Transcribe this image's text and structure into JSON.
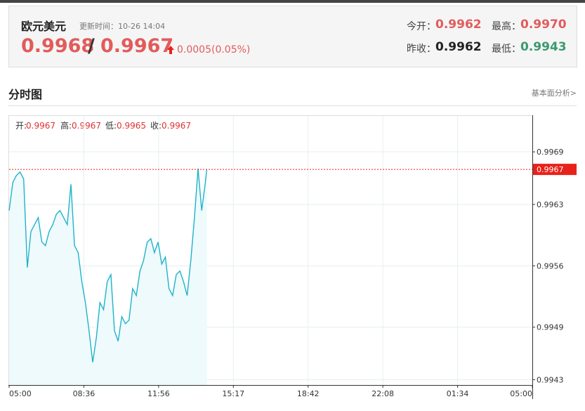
{
  "header": {
    "title": "欧元美元",
    "update_label": "更新时间：10-26 14:04",
    "bid": "0.9968",
    "separator": "/",
    "ask": "0.9967",
    "change": "0.0005(0.05%)",
    "open_label": "今开：",
    "open": "0.9962",
    "high_label": "最高：",
    "high": "0.9970",
    "prev_label": "昨收：",
    "prev": "0.9962",
    "low_label": "最低：",
    "low": "0.9943"
  },
  "section": {
    "title": "分时图",
    "link": "基本面分析>"
  },
  "info": {
    "open_label": "开:",
    "open": "0.9967",
    "high_label": "高:",
    "high": "0.9967",
    "low_label": "低:",
    "low": "0.9965",
    "close_label": "收:",
    "close": "0.9967"
  },
  "chart_data": {
    "type": "line",
    "current_price": 0.9967,
    "xticks": [
      "05:00",
      "08:36",
      "11:56",
      "15:17",
      "18:42",
      "22:08",
      "01:34",
      "05:00"
    ],
    "ylim": [
      0.99424,
      0.99731
    ],
    "yticks": [
      0.9969,
      0.9963,
      0.9956,
      0.9949,
      0.9943
    ],
    "grid": true,
    "series": [
      {
        "color": "#1fb3c9",
        "x": [
          "05:00",
          "05:10",
          "05:20",
          "05:30",
          "05:40",
          "05:50",
          "06:00",
          "06:10",
          "06:20",
          "06:30",
          "06:40",
          "06:50",
          "07:00",
          "07:10",
          "07:20",
          "07:30",
          "07:40",
          "07:50",
          "08:00",
          "08:10",
          "08:20",
          "08:30",
          "08:40",
          "08:50",
          "09:00",
          "09:10",
          "09:20",
          "09:30",
          "09:40",
          "09:50",
          "10:00",
          "10:10",
          "10:20",
          "10:30",
          "10:40",
          "10:50",
          "11:00",
          "11:10",
          "11:20",
          "11:30",
          "11:40",
          "11:50",
          "12:00",
          "12:10",
          "12:20",
          "12:30",
          "12:40",
          "12:50",
          "13:00",
          "13:10",
          "13:20",
          "13:30",
          "13:40",
          "13:50",
          "14:00",
          "14:04"
        ],
        "values": [
          0.99623,
          0.99655,
          0.99663,
          0.99667,
          0.99659,
          0.99558,
          0.99599,
          0.99607,
          0.99615,
          0.99587,
          0.99583,
          0.99599,
          0.99607,
          0.99619,
          0.99623,
          0.99615,
          0.99607,
          0.99653,
          0.99583,
          0.99575,
          0.99542,
          0.99518,
          0.99486,
          0.9945,
          0.99478,
          0.99518,
          0.9951,
          0.99542,
          0.9955,
          0.99486,
          0.99474,
          0.99502,
          0.99494,
          0.99498,
          0.99534,
          0.99526,
          0.99554,
          0.99566,
          0.99587,
          0.99591,
          0.99575,
          0.99587,
          0.99562,
          0.9957,
          0.99534,
          0.99526,
          0.9955,
          0.99554,
          0.99542,
          0.99526,
          0.99566,
          0.99615,
          0.99671,
          0.99623,
          0.99655,
          0.9967
        ]
      }
    ]
  }
}
